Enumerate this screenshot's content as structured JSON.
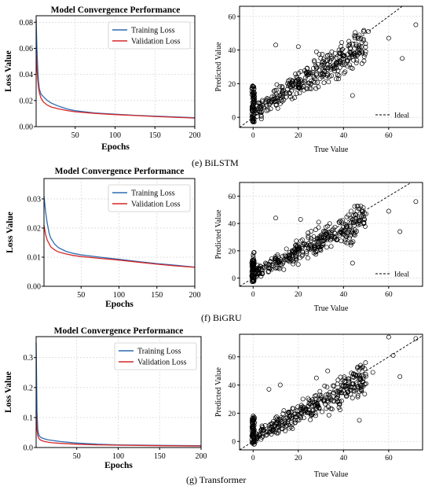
{
  "captions": [
    "(e) BiLSTM",
    "(f) BiGRU",
    "(g) Transformer"
  ],
  "colors": {
    "training": "#2b6cb0",
    "validation": "#d62728",
    "grid": "#d9d9d9"
  },
  "chart_data": [
    {
      "type": "line",
      "title": "Model Convergence Performance",
      "xlabel": "Epochs",
      "ylabel": "Loss Value",
      "xlim": [
        1,
        200
      ],
      "ylim": [
        0,
        0.085
      ],
      "xticks": [
        50,
        100,
        150,
        200
      ],
      "yticks": [
        0.0,
        0.02,
        0.04,
        0.06,
        0.08
      ],
      "ytick_labels": [
        "0.00",
        "0.02",
        "0.04",
        "0.06",
        "0.08"
      ],
      "legend": "top-right",
      "grid": true,
      "series": [
        {
          "name": "Training Loss",
          "x": [
            1,
            2,
            3,
            4,
            5,
            7,
            10,
            15,
            20,
            30,
            40,
            50,
            75,
            100,
            125,
            150,
            175,
            200
          ],
          "y": [
            0.082,
            0.06,
            0.045,
            0.035,
            0.029,
            0.025,
            0.023,
            0.02,
            0.018,
            0.0155,
            0.0135,
            0.0122,
            0.0105,
            0.0095,
            0.0087,
            0.008,
            0.0074,
            0.0068
          ]
        },
        {
          "name": "Validation Loss",
          "x": [
            1,
            2,
            3,
            4,
            5,
            7,
            10,
            15,
            20,
            30,
            40,
            50,
            75,
            100,
            125,
            150,
            175,
            200
          ],
          "y": [
            0.058,
            0.045,
            0.036,
            0.03,
            0.026,
            0.022,
            0.019,
            0.0165,
            0.015,
            0.0135,
            0.0123,
            0.0114,
            0.0101,
            0.0092,
            0.0085,
            0.0078,
            0.0072,
            0.0066
          ]
        }
      ]
    },
    {
      "type": "scatter",
      "xlabel": "True Value",
      "ylabel": "Predicted Value",
      "xlim": [
        -6,
        75
      ],
      "ylim": [
        -6,
        66
      ],
      "xticks": [
        0,
        20,
        40,
        60
      ],
      "yticks": [
        0,
        20,
        40,
        60
      ],
      "legend": "bottom-right",
      "grid": true,
      "ideal_label": "Ideal",
      "outliers": [
        [
          47,
          49
        ],
        [
          51,
          51
        ],
        [
          60,
          47
        ],
        [
          66,
          35
        ],
        [
          72,
          55
        ],
        [
          44,
          13
        ],
        [
          20,
          42
        ],
        [
          28,
          39
        ],
        [
          38,
          40
        ],
        [
          10,
          43
        ]
      ]
    },
    {
      "type": "line",
      "title": "Model Convergence Performance",
      "xlabel": "Epochs",
      "ylabel": "Loss Value",
      "xlim": [
        1,
        200
      ],
      "ylim": [
        0,
        0.037
      ],
      "xticks": [
        50,
        100,
        150,
        200
      ],
      "yticks": [
        0.0,
        0.01,
        0.02,
        0.03
      ],
      "ytick_labels": [
        "0.00",
        "0.01",
        "0.02",
        "0.03"
      ],
      "legend": "top-right",
      "grid": true,
      "series": [
        {
          "name": "Training Loss",
          "x": [
            1,
            3,
            5,
            8,
            10,
            15,
            20,
            30,
            40,
            50,
            75,
            100,
            125,
            150,
            175,
            200
          ],
          "y": [
            0.031,
            0.026,
            0.022,
            0.018,
            0.0165,
            0.0145,
            0.0133,
            0.012,
            0.0113,
            0.0108,
            0.01,
            0.0093,
            0.0085,
            0.0078,
            0.0072,
            0.0066
          ]
        },
        {
          "name": "Validation Loss",
          "x": [
            1,
            3,
            5,
            8,
            10,
            15,
            20,
            30,
            40,
            50,
            75,
            100,
            125,
            150,
            175,
            200
          ],
          "y": [
            0.021,
            0.018,
            0.016,
            0.0145,
            0.0135,
            0.0125,
            0.0118,
            0.0111,
            0.0106,
            0.0102,
            0.0096,
            0.009,
            0.0083,
            0.0076,
            0.007,
            0.0065
          ]
        }
      ]
    },
    {
      "type": "scatter",
      "xlabel": "True Value",
      "ylabel": "Predicted Value",
      "xlim": [
        -6,
        75
      ],
      "ylim": [
        -6,
        70
      ],
      "xticks": [
        0,
        20,
        40,
        60
      ],
      "yticks": [
        0,
        20,
        40,
        60
      ],
      "legend": "bottom-right",
      "grid": true,
      "ideal_label": "Ideal",
      "outliers": [
        [
          46,
          49
        ],
        [
          50,
          47
        ],
        [
          60,
          49
        ],
        [
          65,
          34
        ],
        [
          72,
          56
        ],
        [
          44,
          11
        ],
        [
          21,
          43
        ],
        [
          29,
          41
        ],
        [
          38,
          41
        ],
        [
          10,
          44
        ]
      ]
    },
    {
      "type": "line",
      "title": "Model Convergence Performance",
      "xlabel": "Epochs",
      "ylabel": "Loss Value",
      "xlim": [
        1,
        200
      ],
      "ylim": [
        0,
        0.37
      ],
      "xticks": [
        50,
        100,
        150,
        200
      ],
      "yticks": [
        0.0,
        0.1,
        0.2,
        0.3
      ],
      "ytick_labels": [
        "0.0",
        "0.1",
        "0.2",
        "0.3"
      ],
      "legend": "top-right",
      "grid": true,
      "series": [
        {
          "name": "Training Loss",
          "x": [
            1,
            2,
            3,
            4,
            5,
            7,
            10,
            15,
            20,
            30,
            50,
            75,
            100,
            150,
            200
          ],
          "y": [
            0.35,
            0.12,
            0.06,
            0.045,
            0.038,
            0.033,
            0.03,
            0.026,
            0.024,
            0.02,
            0.015,
            0.011,
            0.009,
            0.007,
            0.006
          ]
        },
        {
          "name": "Validation Loss",
          "x": [
            1,
            2,
            3,
            4,
            5,
            7,
            10,
            15,
            20,
            30,
            50,
            75,
            100,
            150,
            200
          ],
          "y": [
            0.12,
            0.06,
            0.04,
            0.032,
            0.028,
            0.024,
            0.021,
            0.018,
            0.016,
            0.014,
            0.011,
            0.009,
            0.008,
            0.006,
            0.005
          ]
        }
      ]
    },
    {
      "type": "scatter",
      "xlabel": "True Value",
      "ylabel": "Predicted Value",
      "xlim": [
        -6,
        75
      ],
      "ylim": [
        -6,
        76
      ],
      "xticks": [
        0,
        20,
        40,
        60
      ],
      "yticks": [
        0,
        20,
        40,
        60
      ],
      "legend": "none",
      "grid": true,
      "outliers": [
        [
          60,
          74
        ],
        [
          72,
          73
        ],
        [
          62,
          61
        ],
        [
          65,
          46
        ],
        [
          53,
          49
        ],
        [
          47,
          15
        ],
        [
          12,
          40
        ],
        [
          28,
          45
        ],
        [
          33,
          50
        ],
        [
          7,
          37
        ]
      ]
    }
  ]
}
